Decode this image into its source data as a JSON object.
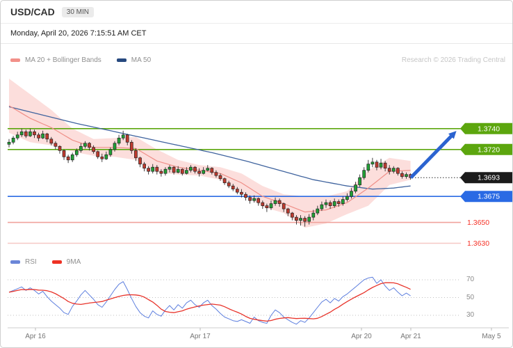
{
  "header": {
    "symbol": "USD/CAD",
    "timeframe": "30 MIN",
    "datetime": "Monday, April 20, 2026 7:15:51 AM CET"
  },
  "legend_main": {
    "ma20": "MA 20 + Bollinger Bands",
    "ma50": "MA 50",
    "watermark": "Research © 2026 Trading Central"
  },
  "legend_rsi": {
    "rsi": "RSI",
    "ma": "9MA"
  },
  "rsi_axis_labels": [
    "70",
    "50",
    "30"
  ],
  "x_axis_labels": [
    "Apr 16",
    "Apr 17",
    "Apr 20",
    "Apr 21",
    "May 5"
  ],
  "colors": {
    "candle_up": "#21a136",
    "candle_down": "#bf3a2e",
    "bollinger_fill": "rgba(246,168,162,0.38)",
    "ma20_line": "#ef8f88",
    "ma50_line": "#3f639e",
    "resistance_green": "#5ca60e",
    "support_blue": "#2a6ae4",
    "support_red_text": "#f53126",
    "level_salmon_line": "#f0a29b",
    "level_pink_line": "#f6c8c5",
    "last_price_black": "#1b1b1b",
    "arrow_blue": "#2b63d0",
    "rsi_line": "#5c7ede",
    "rsi_signal": "#e8332a"
  },
  "chart_data": {
    "type": "candlestick",
    "title": "USD/CAD 30 MIN",
    "interval": "30 MIN",
    "ylim": [
      1.3619,
      1.3796
    ],
    "last_price": 1.3693,
    "x_tick_labels": [
      "Apr 16",
      "Apr 17",
      "Apr 20",
      "Apr 21",
      "May 5"
    ],
    "candles_format": "[open, high, low, close]",
    "candles": [
      [
        1.3725,
        1.373,
        1.3722,
        1.3727
      ],
      [
        1.3727,
        1.3733,
        1.3725,
        1.3731
      ],
      [
        1.3731,
        1.3737,
        1.3729,
        1.3734
      ],
      [
        1.3734,
        1.374,
        1.3732,
        1.3737
      ],
      [
        1.3737,
        1.3739,
        1.3731,
        1.3733
      ],
      [
        1.3733,
        1.374,
        1.3732,
        1.3737
      ],
      [
        1.3737,
        1.3739,
        1.3731,
        1.3734
      ],
      [
        1.3734,
        1.3736,
        1.3728,
        1.3731
      ],
      [
        1.3731,
        1.3738,
        1.373,
        1.3735
      ],
      [
        1.3735,
        1.3736,
        1.3727,
        1.373
      ],
      [
        1.373,
        1.3732,
        1.3724,
        1.3726
      ],
      [
        1.3726,
        1.3728,
        1.372,
        1.3723
      ],
      [
        1.3723,
        1.3724,
        1.3716,
        1.3719
      ],
      [
        1.3719,
        1.372,
        1.371,
        1.3713
      ],
      [
        1.3713,
        1.3715,
        1.3707,
        1.371
      ],
      [
        1.371,
        1.3717,
        1.3708,
        1.3715
      ],
      [
        1.3715,
        1.3721,
        1.3713,
        1.3719
      ],
      [
        1.3719,
        1.3726,
        1.3717,
        1.3723
      ],
      [
        1.3723,
        1.3728,
        1.3721,
        1.3726
      ],
      [
        1.3726,
        1.3727,
        1.3719,
        1.3722
      ],
      [
        1.3722,
        1.3724,
        1.3716,
        1.3718
      ],
      [
        1.3718,
        1.3719,
        1.3711,
        1.3713
      ],
      [
        1.3713,
        1.3716,
        1.3708,
        1.3711
      ],
      [
        1.3711,
        1.3718,
        1.371,
        1.3715
      ],
      [
        1.3715,
        1.3722,
        1.3713,
        1.372
      ],
      [
        1.372,
        1.3728,
        1.3718,
        1.3726
      ],
      [
        1.3726,
        1.3734,
        1.3724,
        1.3731
      ],
      [
        1.3731,
        1.3738,
        1.3729,
        1.3734
      ],
      [
        1.3734,
        1.3735,
        1.3724,
        1.3727
      ],
      [
        1.3727,
        1.3729,
        1.3716,
        1.3719
      ],
      [
        1.3719,
        1.3721,
        1.3709,
        1.3712
      ],
      [
        1.3712,
        1.3713,
        1.3703,
        1.3706
      ],
      [
        1.3706,
        1.3708,
        1.3699,
        1.3702
      ],
      [
        1.3702,
        1.3704,
        1.3696,
        1.3699
      ],
      [
        1.3699,
        1.3706,
        1.3697,
        1.3703
      ],
      [
        1.3703,
        1.3705,
        1.3696,
        1.3699
      ],
      [
        1.3699,
        1.3701,
        1.3694,
        1.3697
      ],
      [
        1.3697,
        1.3703,
        1.3695,
        1.3701
      ],
      [
        1.3701,
        1.3705,
        1.3698,
        1.3703
      ],
      [
        1.3703,
        1.3704,
        1.3696,
        1.3698
      ],
      [
        1.3698,
        1.3704,
        1.3697,
        1.3701
      ],
      [
        1.3701,
        1.3702,
        1.3695,
        1.3697
      ],
      [
        1.3697,
        1.3703,
        1.3696,
        1.37
      ],
      [
        1.37,
        1.3705,
        1.3698,
        1.3703
      ],
      [
        1.3703,
        1.3704,
        1.3697,
        1.3699
      ],
      [
        1.3699,
        1.3702,
        1.3694,
        1.3697
      ],
      [
        1.3697,
        1.3703,
        1.3696,
        1.37
      ],
      [
        1.37,
        1.3705,
        1.3699,
        1.3702
      ],
      [
        1.3702,
        1.3703,
        1.3696,
        1.3698
      ],
      [
        1.3698,
        1.37,
        1.3693,
        1.3695
      ],
      [
        1.3695,
        1.3697,
        1.369,
        1.3692
      ],
      [
        1.3692,
        1.3693,
        1.3686,
        1.3688
      ],
      [
        1.3688,
        1.369,
        1.3683,
        1.3685
      ],
      [
        1.3685,
        1.3687,
        1.368,
        1.3682
      ],
      [
        1.3682,
        1.3684,
        1.3677,
        1.3679
      ],
      [
        1.3679,
        1.3682,
        1.3674,
        1.3677
      ],
      [
        1.3677,
        1.3679,
        1.3671,
        1.3674
      ],
      [
        1.3674,
        1.3676,
        1.3668,
        1.3671
      ],
      [
        1.3671,
        1.3676,
        1.3669,
        1.3673
      ],
      [
        1.3673,
        1.3674,
        1.3666,
        1.3669
      ],
      [
        1.3669,
        1.3671,
        1.3663,
        1.3666
      ],
      [
        1.3666,
        1.3668,
        1.366,
        1.3664
      ],
      [
        1.3664,
        1.3671,
        1.3662,
        1.3668
      ],
      [
        1.3668,
        1.3674,
        1.3666,
        1.3671
      ],
      [
        1.3671,
        1.3673,
        1.3665,
        1.3668
      ],
      [
        1.3668,
        1.3669,
        1.366,
        1.3663
      ],
      [
        1.3663,
        1.3664,
        1.3656,
        1.3659
      ],
      [
        1.3659,
        1.366,
        1.3652,
        1.3655
      ],
      [
        1.3655,
        1.3657,
        1.3648,
        1.3652
      ],
      [
        1.3652,
        1.3657,
        1.3647,
        1.3654
      ],
      [
        1.3654,
        1.3656,
        1.3646,
        1.3651
      ],
      [
        1.3651,
        1.3658,
        1.3648,
        1.3655
      ],
      [
        1.3655,
        1.3662,
        1.3652,
        1.3659
      ],
      [
        1.3659,
        1.3666,
        1.3657,
        1.3663
      ],
      [
        1.3663,
        1.367,
        1.3661,
        1.3667
      ],
      [
        1.3667,
        1.3672,
        1.3664,
        1.3669
      ],
      [
        1.3669,
        1.3671,
        1.3663,
        1.3666
      ],
      [
        1.3666,
        1.3673,
        1.3664,
        1.367
      ],
      [
        1.367,
        1.3672,
        1.3665,
        1.3668
      ],
      [
        1.3668,
        1.3675,
        1.3666,
        1.3672
      ],
      [
        1.3672,
        1.3678,
        1.367,
        1.3675
      ],
      [
        1.3675,
        1.3683,
        1.3673,
        1.368
      ],
      [
        1.368,
        1.3689,
        1.3678,
        1.3686
      ],
      [
        1.3686,
        1.3696,
        1.3684,
        1.3693
      ],
      [
        1.3693,
        1.3703,
        1.3691,
        1.37
      ],
      [
        1.37,
        1.371,
        1.3698,
        1.3706
      ],
      [
        1.3706,
        1.3712,
        1.3703,
        1.3708
      ],
      [
        1.3708,
        1.371,
        1.37,
        1.3703
      ],
      [
        1.3703,
        1.3711,
        1.3701,
        1.3707
      ],
      [
        1.3707,
        1.3709,
        1.3699,
        1.3702
      ],
      [
        1.3702,
        1.3705,
        1.3696,
        1.3699
      ],
      [
        1.3699,
        1.3704,
        1.3697,
        1.3702
      ],
      [
        1.3702,
        1.3703,
        1.3695,
        1.3697
      ],
      [
        1.3697,
        1.3699,
        1.3692,
        1.3694
      ],
      [
        1.3694,
        1.3698,
        1.3692,
        1.3696
      ],
      [
        1.3696,
        1.3697,
        1.3691,
        1.3693
      ]
    ],
    "indicators": {
      "ma50_points": [
        [
          0,
          1.3761
        ],
        [
          8,
          1.3753
        ],
        [
          16,
          1.3745
        ],
        [
          24,
          1.3738
        ],
        [
          32,
          1.3731
        ],
        [
          40,
          1.3724
        ],
        [
          48,
          1.3717
        ],
        [
          56,
          1.3709
        ],
        [
          64,
          1.37
        ],
        [
          72,
          1.3691
        ],
        [
          80,
          1.3685
        ],
        [
          86,
          1.3682
        ],
        [
          91,
          1.3683
        ],
        [
          95,
          1.3685
        ]
      ],
      "bollinger_points_format": "[index, middle(MA20), half_width]",
      "bollinger_points": [
        [
          0,
          1.3762,
          0.0026
        ],
        [
          5,
          1.375,
          0.0023
        ],
        [
          10,
          1.3741,
          0.0017
        ],
        [
          15,
          1.3729,
          0.0011
        ],
        [
          20,
          1.3722,
          0.0008
        ],
        [
          25,
          1.3722,
          0.0009
        ],
        [
          30,
          1.3721,
          0.0011
        ],
        [
          35,
          1.3709,
          0.0011
        ],
        [
          40,
          1.3703,
          0.0007
        ],
        [
          45,
          1.37,
          0.0005
        ],
        [
          50,
          1.3697,
          0.0006
        ],
        [
          55,
          1.3688,
          0.0009
        ],
        [
          60,
          1.3675,
          0.001
        ],
        [
          65,
          1.3668,
          0.0009
        ],
        [
          70,
          1.366,
          0.0015
        ],
        [
          75,
          1.3662,
          0.0013
        ],
        [
          80,
          1.3669,
          0.0011
        ],
        [
          85,
          1.3683,
          0.0017
        ],
        [
          90,
          1.3699,
          0.0013
        ],
        [
          95,
          1.37,
          0.0009
        ]
      ]
    },
    "levels": [
      {
        "price": 1.374,
        "label": "1.3740",
        "kind": "resistance",
        "style": "tag",
        "color": "#5ca60e",
        "line_color": "#5ca60e"
      },
      {
        "price": 1.372,
        "label": "1.3720",
        "kind": "resistance",
        "style": "tag",
        "color": "#5ca60e",
        "line_color": "#5ca60e"
      },
      {
        "price": 1.3693,
        "label": "1.3693",
        "kind": "last-price",
        "style": "tag",
        "color": "#1b1b1b",
        "line_color": "#2a2a2a",
        "dotted": true,
        "span": "right"
      },
      {
        "price": 1.3675,
        "label": "1.3675",
        "kind": "support",
        "style": "tag",
        "color": "#2a6ae4",
        "line_color": "#2a6ae4"
      },
      {
        "price": 1.365,
        "label": "1.3650",
        "kind": "support",
        "style": "text",
        "color": "#f53126",
        "line_color": "#f0a29b"
      },
      {
        "price": 1.363,
        "label": "1.3630",
        "kind": "support",
        "style": "text",
        "color": "#f53126",
        "line_color": "#f6c8c5"
      }
    ],
    "annotation_arrow": {
      "direction": "up",
      "from_price": 1.3693,
      "to_price": 1.3734,
      "color": "#2b63d0"
    },
    "rsi_panel": {
      "type": "line",
      "range": [
        0,
        100
      ],
      "gridlines": [
        70,
        50,
        30
      ],
      "signal_period": 9,
      "values": [
        56,
        58,
        60,
        62,
        58,
        61,
        58,
        54,
        57,
        51,
        46,
        42,
        38,
        33,
        31,
        40,
        46,
        53,
        58,
        53,
        48,
        42,
        39,
        45,
        52,
        59,
        65,
        68,
        59,
        49,
        40,
        33,
        29,
        27,
        35,
        31,
        29,
        36,
        41,
        36,
        42,
        38,
        44,
        47,
        42,
        39,
        44,
        47,
        41,
        37,
        32,
        28,
        26,
        24,
        23,
        25,
        23,
        21,
        28,
        24,
        22,
        21,
        30,
        36,
        33,
        28,
        25,
        22,
        20,
        24,
        22,
        27,
        33,
        39,
        45,
        48,
        44,
        49,
        46,
        51,
        54,
        58,
        62,
        66,
        70,
        72,
        73,
        66,
        70,
        63,
        58,
        61,
        56,
        52,
        55,
        52
      ]
    }
  }
}
